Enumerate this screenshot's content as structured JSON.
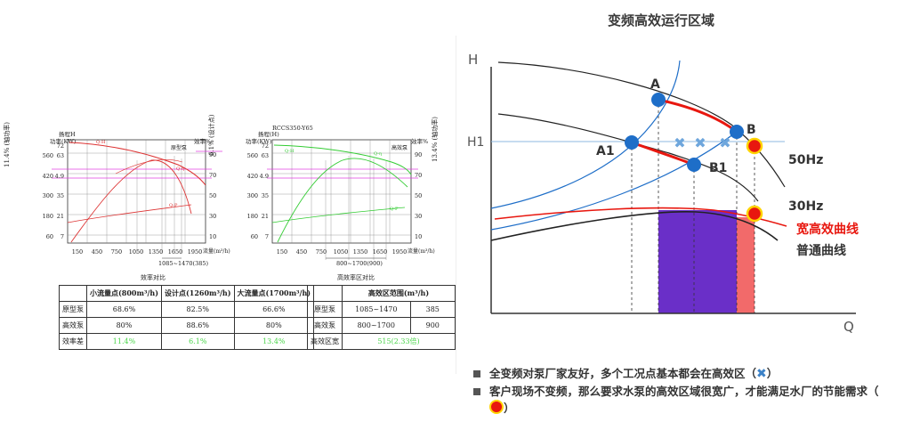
{
  "left": {
    "chart1": {
      "code": "",
      "y_left_title": "扬程H",
      "y_left_unit": "功率(KW)",
      "y_left_rot": "11.4% (轴功率)",
      "y_right_title": "效率%",
      "y_right_rot": "6.1% (设计点)",
      "curve_tag": "原型泵",
      "y_ticks_left": [
        "72",
        "63",
        "4.9",
        "35",
        "21",
        "7"
      ],
      "y_ticks_left_a": [
        "",
        "560",
        "420",
        "300",
        "180",
        "60"
      ],
      "y_ticks_right": [
        "90",
        "70",
        "50",
        "30",
        "10"
      ],
      "x_ticks": [
        "150",
        "450",
        "750",
        "1050",
        "1350",
        "1650",
        "1950"
      ],
      "x_label": "流量(m³/h)",
      "range_label": "1085~1470(385)",
      "curve_labels": [
        "Q-H",
        "Q-η",
        "Q-P"
      ]
    },
    "chart2": {
      "code": "RCCS350-Y65",
      "y_left_title": "扬程(H)",
      "y_left_unit": "功率(KW)",
      "y_right_title": "效率%",
      "y_right_rot": "13.4% (轴功率)",
      "curve_tag": "高效泵",
      "y_ticks_left": [
        "72",
        "63",
        "4.9",
        "35",
        "21",
        "7"
      ],
      "y_ticks_left_a": [
        "",
        "560",
        "420",
        "300",
        "180",
        "60"
      ],
      "y_ticks_right": [
        "90",
        "70",
        "50",
        "30",
        "10"
      ],
      "x_ticks": [
        "150",
        "450",
        "750",
        "1050",
        "1350",
        "1650",
        "1950"
      ],
      "x_label": "流量(m³/h)",
      "range_label": "800~1700(900)",
      "curve_labels": [
        "Q-H",
        "Q-η",
        "Q-P"
      ]
    },
    "table1": {
      "caption": "效率对比",
      "headers": [
        "",
        "小流量点(800m³/h)",
        "设计点(1260m³/h)",
        "大流量点(1700m³/h)"
      ],
      "rows": [
        [
          "原型泵",
          "68.6%",
          "82.5%",
          "66.6%"
        ],
        [
          "高效泵",
          "80%",
          "88.6%",
          "80%"
        ],
        [
          "效率差",
          "11.4%",
          "6.1%",
          "13.4%"
        ]
      ]
    },
    "table2": {
      "caption": "高效率区对比",
      "headers": [
        "",
        "高效区范围(m³/h)",
        ""
      ],
      "rows": [
        [
          "原型泵",
          "1085~1470",
          "385"
        ],
        [
          "高效泵",
          "800~1700",
          "900"
        ],
        [
          "高效区宽",
          "515(2.33倍)",
          ""
        ]
      ]
    }
  },
  "right": {
    "title": "变频高效运行区域",
    "axis_y": "H",
    "axis_x": "Q",
    "h1_label": "H1",
    "point_labels": {
      "A": "A",
      "A1": "A1",
      "B": "B",
      "B1": "B1"
    },
    "curve_labels": {
      "hz50": "50Hz",
      "hz30": "30Hz",
      "wide": "宽高效曲线",
      "normal": "普通曲线"
    },
    "colors": {
      "blue": "#1e6ec8",
      "red": "#e8170f",
      "purple": "#6a2fc8",
      "pink": "#f26a6a",
      "yellow": "#ffd400",
      "marker_x": "#6ea6dc"
    }
  },
  "notes": [
    {
      "text": "全变频对泵厂家友好，多个工况点基本都会在高效区（",
      "marker": "x",
      "tail": "）"
    },
    {
      "text": "客户现场不变频，那么要求水泵的高效区域很宽广，才能满足水厂的节能需求（",
      "marker": "dot",
      "tail": "）"
    }
  ]
}
